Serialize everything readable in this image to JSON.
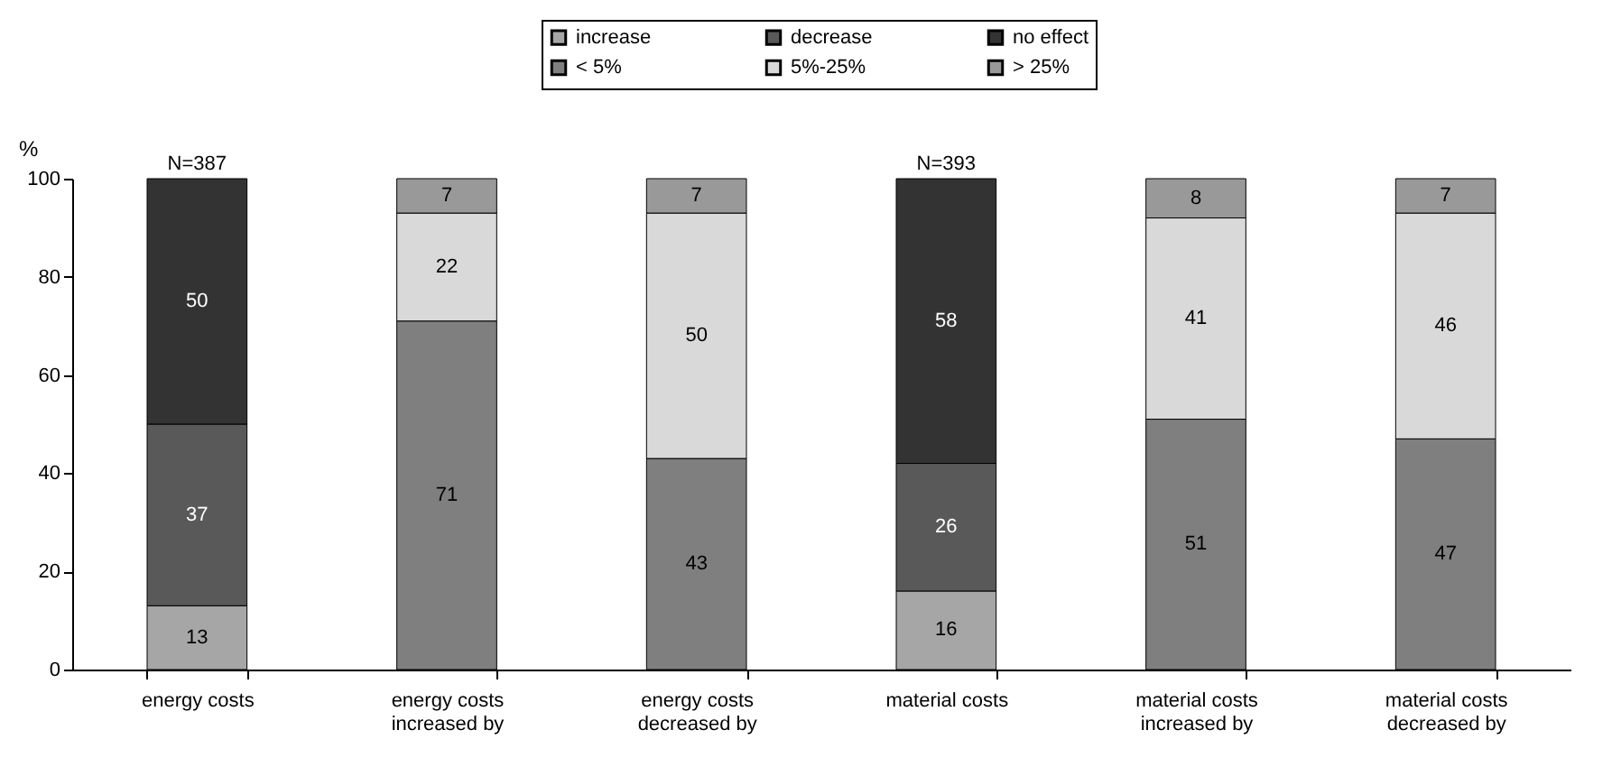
{
  "chart_data": {
    "type": "bar",
    "stacked": true,
    "ylabel": "%",
    "categories": [
      "energy costs",
      "energy costs increased by",
      "energy costs decreased by",
      "material costs",
      "material costs increased by",
      "material costs decreased by"
    ],
    "series": [
      {
        "name": "increase",
        "color": "#a6a6a6",
        "values": [
          13,
          null,
          null,
          16,
          null,
          null
        ]
      },
      {
        "name": "decrease",
        "color": "#595959",
        "values": [
          37,
          null,
          null,
          26,
          null,
          null
        ]
      },
      {
        "name": "no effect",
        "color": "#333333",
        "values": [
          50,
          null,
          null,
          58,
          null,
          null
        ]
      },
      {
        "name": "< 5%",
        "color": "#7f7f7f",
        "values": [
          null,
          71,
          43,
          null,
          51,
          47
        ]
      },
      {
        "name": "5%-25%",
        "color": "#d9d9d9",
        "values": [
          null,
          22,
          50,
          null,
          41,
          46
        ]
      },
      {
        "name": "> 25%",
        "color": "#999999",
        "values": [
          null,
          7,
          7,
          null,
          8,
          7
        ]
      }
    ],
    "ylim": [
      0,
      100
    ],
    "yticks": [
      0,
      20,
      40,
      60,
      80,
      100
    ],
    "data_labels": true,
    "legend": "top",
    "annotations": [
      {
        "text": "N=387",
        "x": "energy costs",
        "y": 100
      },
      {
        "text": "N=393",
        "x": "material costs",
        "y": 100
      }
    ]
  }
}
